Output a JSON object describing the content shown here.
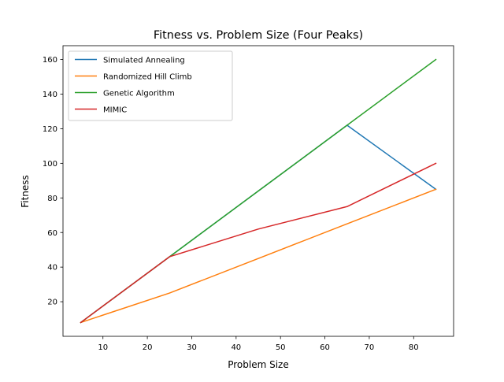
{
  "chart_data": {
    "type": "line",
    "title": "Fitness vs. Problem Size (Four Peaks)",
    "xlabel": "Problem Size",
    "ylabel": "Fitness",
    "xlim": [
      1,
      89
    ],
    "ylim": [
      0,
      168
    ],
    "xticks": [
      10,
      20,
      30,
      40,
      50,
      60,
      70,
      80
    ],
    "yticks": [
      20,
      40,
      60,
      80,
      100,
      120,
      140,
      160
    ],
    "x": [
      5,
      25,
      45,
      65,
      85
    ],
    "series": [
      {
        "name": "Simulated Annealing",
        "color": "#1f77b4",
        "values": [
          8,
          46,
          84,
          122,
          85
        ]
      },
      {
        "name": "Randomized Hill Climb",
        "color": "#ff7f0e",
        "values": [
          8,
          25,
          45,
          65,
          85
        ]
      },
      {
        "name": "Genetic Algorithm",
        "color": "#2ca02c",
        "values": [
          8,
          46,
          84,
          122,
          160
        ]
      },
      {
        "name": "MIMIC",
        "color": "#d62728",
        "values": [
          8,
          46,
          62,
          75,
          100
        ]
      }
    ],
    "legend": "upper left",
    "grid": false
  }
}
